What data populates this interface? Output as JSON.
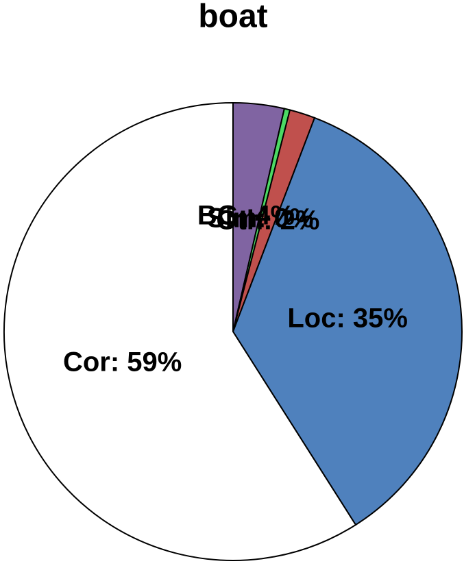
{
  "chart_data": {
    "type": "pie",
    "title": "boat",
    "values": [
      3.6,
      0.4,
      1.8,
      35.2,
      59
    ],
    "value_labels": [
      "BG: 4%",
      "Sim: 0%",
      "Oth: 2%",
      "Loc: 35%",
      "Cor: 59%"
    ],
    "colors": [
      "#8064a2",
      "#4cd964",
      "#c0504d",
      "#4f81bd",
      "#ffffff"
    ]
  }
}
